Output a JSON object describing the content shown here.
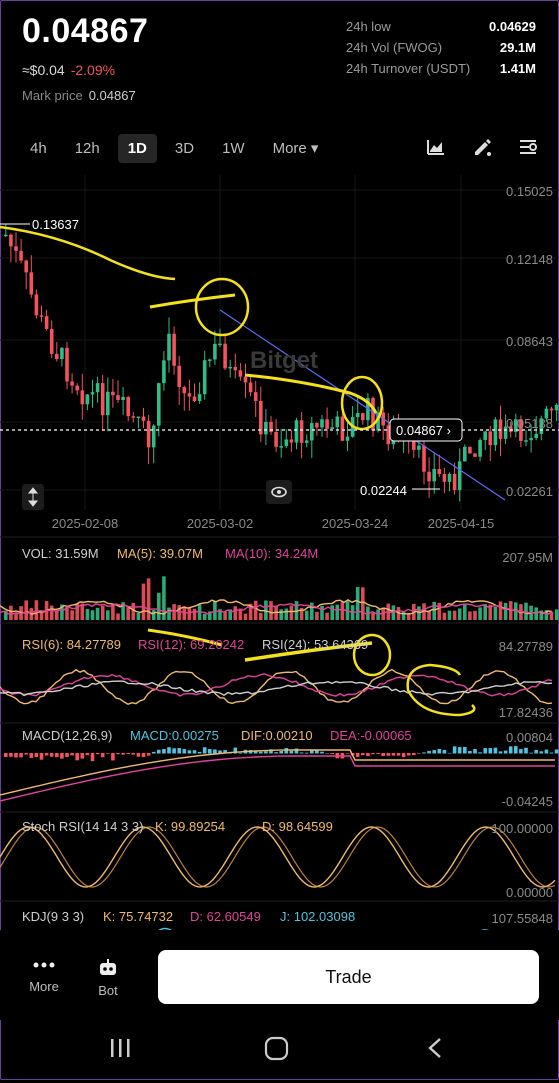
{
  "header": {
    "price": "0.04867",
    "usd_price": "≈$0.04",
    "change": "-2.09%",
    "mark_price_label": "Mark price",
    "mark_price_value": "0.04867"
  },
  "stats": [
    {
      "label": "24h low",
      "value": "0.04629"
    },
    {
      "label": "24h Vol (FWOG)",
      "value": "29.1M"
    },
    {
      "label": "24h Turnover (USDT)",
      "value": "1.41M"
    }
  ],
  "tabs": [
    {
      "label": "4h",
      "active": false
    },
    {
      "label": "12h",
      "active": false
    },
    {
      "label": "1D",
      "active": true
    },
    {
      "label": "3D",
      "active": false
    },
    {
      "label": "1W",
      "active": false
    },
    {
      "label": "More ▾",
      "active": false
    }
  ],
  "toolbar_icons": [
    "chart-type-icon",
    "draw-tool-icon",
    "indicator-settings-icon"
  ],
  "main_chart": {
    "price_ticks": [
      "0.15025",
      "0.12148",
      "0.08643",
      "0.05138",
      "0.02261"
    ],
    "date_ticks": [
      "2025-02-08",
      "2025-03-02",
      "2025-03-24",
      "2025-04-15"
    ],
    "high_label": "0.13637",
    "low_label": "0.02244",
    "current_label": "0.04867 ›",
    "watermark": "Bitget"
  },
  "volume": {
    "vol_label": "VOL: 31.59M",
    "ma5_label": "MA(5): 39.07M",
    "ma10_label": "MA(10): 34.24M",
    "max_tick": "207.95M"
  },
  "rsi": {
    "rsi6_label": "RSI(6): 84.27789",
    "rsi12_label": "RSI(12): 69.20242",
    "rsi24_label": "RSI(24): 53.64369",
    "top_tick": "84.27789",
    "bottom_tick": "17.82436"
  },
  "macd": {
    "title": "MACD(12,26,9)",
    "macd_label": "MACD:0.00275",
    "dif_label": "DIF:0.00210",
    "dea_label": "DEA:-0.00065",
    "top_tick": "0.00804",
    "bottom_tick": "-0.04245"
  },
  "stoch": {
    "title": "Stoch RSI(14 14 3 3)",
    "k_label": "K: 99.89254",
    "d_label": "D: 98.64599",
    "top_tick": "100.00000",
    "bottom_tick": "0.00000"
  },
  "kdj": {
    "title": "KDJ(9 3 3)",
    "k_label": "K: 75.74732",
    "d_label": "D: 62.60549",
    "j_label": "J: 102.03098",
    "top_tick": "107.55848"
  },
  "bottom_nav": {
    "more_label": "More",
    "bot_label": "Bot",
    "trade_label": "Trade"
  },
  "colors": {
    "up": "#2ebd85",
    "down": "#f2535d",
    "ma5": "#f0b96b",
    "ma10": "#e0449a",
    "annotation": "#f5e11a",
    "trendline": "#5b6cff",
    "cyan": "#4fc3e0"
  }
}
